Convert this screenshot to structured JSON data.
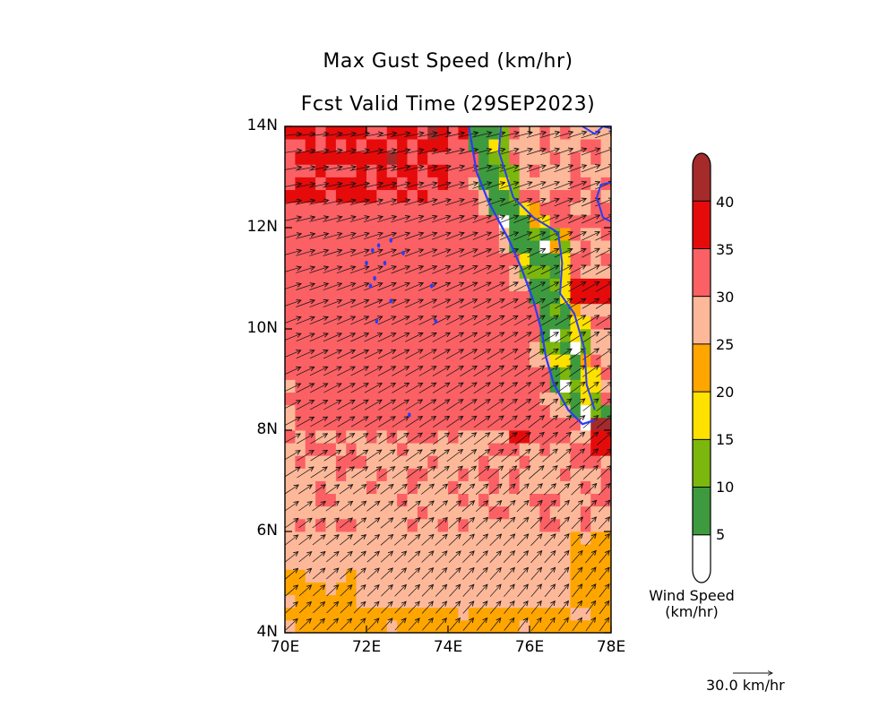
{
  "title": "Max Gust Speed (km/hr)",
  "subtitle": "Fcst Valid Time (29SEP2023)",
  "map": {
    "lon_range": [
      70,
      78
    ],
    "lat_range": [
      4,
      14
    ],
    "x_ticks": [
      "70E",
      "72E",
      "74E",
      "76E",
      "78E"
    ],
    "y_ticks": [
      "4N",
      "6N",
      "8N",
      "10N",
      "12N",
      "14N"
    ],
    "coastline_color": "#2a3df5",
    "islands": [
      [
        72.15,
        11.55
      ],
      [
        72.3,
        11.65
      ],
      [
        72.6,
        11.75
      ],
      [
        72.9,
        11.5
      ],
      [
        72.0,
        11.3
      ],
      [
        72.45,
        11.3
      ],
      [
        72.2,
        11.0
      ],
      [
        72.1,
        10.85
      ],
      [
        72.6,
        10.55
      ],
      [
        73.6,
        10.85
      ],
      [
        73.7,
        10.15
      ],
      [
        72.25,
        10.15
      ],
      [
        73.05,
        8.3
      ]
    ]
  },
  "legend": {
    "title_line1": "Wind Speed",
    "title_line2": "(km/hr)",
    "bins": [
      {
        "range": "0-5",
        "color": "#ffffff"
      },
      {
        "range": "5-10",
        "color": "#3e9a3e"
      },
      {
        "range": "10-15",
        "color": "#7cb70d"
      },
      {
        "range": "15-20",
        "color": "#ffe100"
      },
      {
        "range": "20-25",
        "color": "#ffa500"
      },
      {
        "range": "25-30",
        "color": "#fdb899"
      },
      {
        "range": "30-35",
        "color": "#fb6064"
      },
      {
        "range": "35-40",
        "color": "#e60b0b"
      },
      {
        "range": "40+",
        "color": "#a52a2a"
      }
    ],
    "tick_labels": [
      "5",
      "10",
      "15",
      "20",
      "25",
      "30",
      "35",
      "40"
    ]
  },
  "vector_reference": {
    "label": "30.0 km/hr"
  }
}
